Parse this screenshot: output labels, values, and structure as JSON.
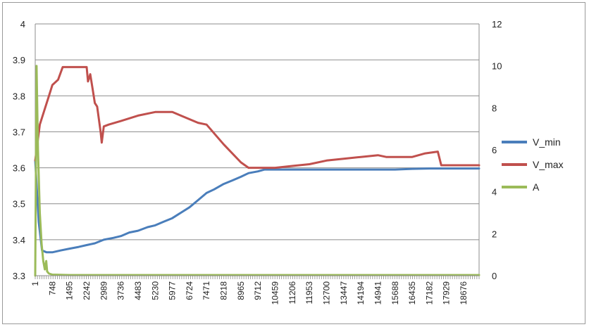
{
  "chart_data": {
    "type": "line",
    "title": "",
    "xlabel": "",
    "ylabel": "",
    "x_tick_labels": [
      "1",
      "748",
      "1495",
      "2242",
      "2989",
      "3736",
      "4483",
      "5230",
      "5977",
      "6724",
      "7471",
      "8218",
      "8965",
      "9712",
      "10459",
      "11206",
      "11953",
      "12700",
      "13447",
      "14194",
      "14941",
      "15688",
      "16435",
      "17182",
      "17929",
      "18676"
    ],
    "x_range": [
      1,
      19350
    ],
    "ylim_left": [
      3.3,
      4.0
    ],
    "y_ticks_left": [
      "3.3",
      "3.4",
      "3.5",
      "3.6",
      "3.7",
      "3.8",
      "3.9",
      "4"
    ],
    "ylim_right": [
      0,
      12
    ],
    "y_ticks_right": [
      "0",
      "2",
      "4",
      "6",
      "8",
      "10",
      "12"
    ],
    "grid": true,
    "legend_placement": "right",
    "series": [
      {
        "name": "V_min",
        "axis": "left",
        "color": "#4a7ebb",
        "points": [
          [
            1,
            3.62
          ],
          [
            150,
            3.45
          ],
          [
            300,
            3.37
          ],
          [
            500,
            3.365
          ],
          [
            748,
            3.365
          ],
          [
            1100,
            3.37
          ],
          [
            1495,
            3.375
          ],
          [
            1900,
            3.38
          ],
          [
            2242,
            3.385
          ],
          [
            2600,
            3.39
          ],
          [
            2989,
            3.4
          ],
          [
            3400,
            3.405
          ],
          [
            3736,
            3.41
          ],
          [
            4100,
            3.42
          ],
          [
            4483,
            3.425
          ],
          [
            4900,
            3.435
          ],
          [
            5230,
            3.44
          ],
          [
            5600,
            3.45
          ],
          [
            5977,
            3.46
          ],
          [
            6350,
            3.475
          ],
          [
            6724,
            3.49
          ],
          [
            7100,
            3.51
          ],
          [
            7471,
            3.53
          ],
          [
            7800,
            3.54
          ],
          [
            8218,
            3.555
          ],
          [
            8600,
            3.565
          ],
          [
            8965,
            3.575
          ],
          [
            9300,
            3.585
          ],
          [
            9712,
            3.59
          ],
          [
            10000,
            3.595
          ],
          [
            10459,
            3.595
          ],
          [
            11206,
            3.595
          ],
          [
            11953,
            3.595
          ],
          [
            12700,
            3.595
          ],
          [
            13447,
            3.595
          ],
          [
            14194,
            3.595
          ],
          [
            14941,
            3.595
          ],
          [
            15688,
            3.595
          ],
          [
            16435,
            3.597
          ],
          [
            17182,
            3.598
          ],
          [
            17929,
            3.598
          ],
          [
            18676,
            3.598
          ],
          [
            19350,
            3.598
          ]
        ]
      },
      {
        "name": "V_max",
        "axis": "left",
        "color": "#c0504d",
        "points": [
          [
            1,
            3.62
          ],
          [
            80,
            3.66
          ],
          [
            200,
            3.72
          ],
          [
            400,
            3.76
          ],
          [
            600,
            3.8
          ],
          [
            748,
            3.83
          ],
          [
            1000,
            3.845
          ],
          [
            1200,
            3.88
          ],
          [
            1495,
            3.88
          ],
          [
            1900,
            3.88
          ],
          [
            2242,
            3.88
          ],
          [
            2300,
            3.84
          ],
          [
            2400,
            3.86
          ],
          [
            2500,
            3.82
          ],
          [
            2600,
            3.78
          ],
          [
            2700,
            3.77
          ],
          [
            2850,
            3.7
          ],
          [
            2900,
            3.67
          ],
          [
            2989,
            3.715
          ],
          [
            3200,
            3.72
          ],
          [
            3736,
            3.73
          ],
          [
            4483,
            3.745
          ],
          [
            5230,
            3.755
          ],
          [
            5977,
            3.755
          ],
          [
            6350,
            3.745
          ],
          [
            6724,
            3.735
          ],
          [
            7100,
            3.725
          ],
          [
            7471,
            3.72
          ],
          [
            8218,
            3.665
          ],
          [
            8965,
            3.615
          ],
          [
            9300,
            3.6
          ],
          [
            9712,
            3.6
          ],
          [
            10459,
            3.6
          ],
          [
            11206,
            3.605
          ],
          [
            11953,
            3.61
          ],
          [
            12700,
            3.62
          ],
          [
            13447,
            3.625
          ],
          [
            14194,
            3.63
          ],
          [
            14941,
            3.635
          ],
          [
            15300,
            3.63
          ],
          [
            15688,
            3.63
          ],
          [
            16435,
            3.63
          ],
          [
            17000,
            3.64
          ],
          [
            17550,
            3.645
          ],
          [
            17700,
            3.607
          ],
          [
            17929,
            3.607
          ],
          [
            18676,
            3.607
          ],
          [
            19350,
            3.607
          ]
        ]
      },
      {
        "name": "A",
        "axis": "right",
        "color": "#9bbb59",
        "points": [
          [
            1,
            0
          ],
          [
            60,
            10
          ],
          [
            120,
            6
          ],
          [
            200,
            3
          ],
          [
            280,
            1.5
          ],
          [
            350,
            0.7
          ],
          [
            420,
            0.3
          ],
          [
            480,
            0.7
          ],
          [
            520,
            0.2
          ],
          [
            600,
            0.1
          ],
          [
            748,
            0.05
          ],
          [
            1495,
            0.03
          ],
          [
            19350,
            0.03
          ]
        ]
      }
    ]
  }
}
